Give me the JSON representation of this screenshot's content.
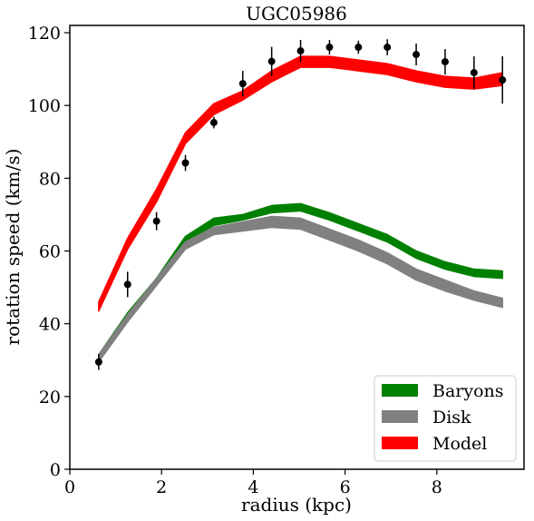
{
  "chart_data": {
    "type": "line",
    "title": "UGC05986",
    "xlabel": "radius (kpc)",
    "ylabel": "rotation speed (km/s)",
    "xlim": [
      0,
      9.9
    ],
    "ylim": [
      0,
      122
    ],
    "xticks": [
      0,
      2,
      4,
      6,
      8
    ],
    "yticks": [
      0,
      20,
      40,
      60,
      80,
      100,
      120
    ],
    "grid": false,
    "legend_position": "bottom-right",
    "x": [
      0.63,
      1.26,
      1.89,
      2.52,
      3.14,
      3.77,
      4.4,
      5.03,
      5.66,
      6.29,
      6.92,
      7.55,
      8.18,
      8.81,
      9.43
    ],
    "bands": [
      {
        "name": "Baryons",
        "color": "#008000",
        "lower": [
          30.5,
          42.0,
          51.5,
          62.5,
          67.0,
          68.5,
          70.5,
          71.0,
          68.5,
          65.5,
          62.5,
          58.0,
          55.0,
          53.0,
          52.5
        ],
        "upper": [
          31.5,
          43.0,
          52.5,
          64.0,
          69.0,
          70.0,
          72.5,
          73.0,
          70.5,
          67.5,
          64.5,
          60.0,
          57.0,
          55.0,
          54.5
        ]
      },
      {
        "name": "Disk",
        "color": "#808080",
        "lower": [
          29.5,
          40.5,
          50.5,
          60.5,
          64.5,
          65.5,
          66.5,
          66.0,
          63.0,
          60.0,
          56.5,
          52.0,
          49.0,
          46.5,
          44.5
        ],
        "upper": [
          31.5,
          42.5,
          52.5,
          62.5,
          66.5,
          68.0,
          69.5,
          69.0,
          66.0,
          63.0,
          59.5,
          55.0,
          52.0,
          49.0,
          47.0
        ]
      },
      {
        "name": "Model",
        "color": "#ff0000",
        "lower": [
          43.5,
          60.5,
          73.5,
          89.5,
          97.5,
          101.5,
          106.5,
          110.5,
          110.5,
          109.5,
          108.5,
          106.5,
          105.0,
          104.5,
          105.5
        ],
        "upper": [
          46.0,
          63.5,
          77.0,
          92.5,
          100.5,
          104.0,
          109.5,
          113.5,
          113.5,
          112.5,
          111.5,
          109.5,
          108.0,
          107.5,
          109.0
        ]
      }
    ],
    "observed": {
      "x": [
        0.63,
        1.26,
        1.89,
        2.52,
        3.14,
        3.77,
        4.4,
        5.03,
        5.66,
        6.29,
        6.92,
        7.55,
        8.18,
        8.81,
        9.43
      ],
      "y": [
        29.5,
        50.8,
        68.2,
        84.2,
        95.3,
        106.0,
        112.1,
        115.0,
        116.0,
        116.0,
        116.0,
        114.0,
        112.0,
        109.0,
        107.0
      ],
      "err": [
        2.2,
        3.5,
        2.5,
        2.2,
        1.6,
        3.5,
        4.0,
        3.0,
        2.0,
        1.8,
        2.2,
        3.0,
        3.5,
        4.5,
        6.5
      ]
    },
    "legend": [
      "Baryons",
      "Disk",
      "Model"
    ]
  }
}
